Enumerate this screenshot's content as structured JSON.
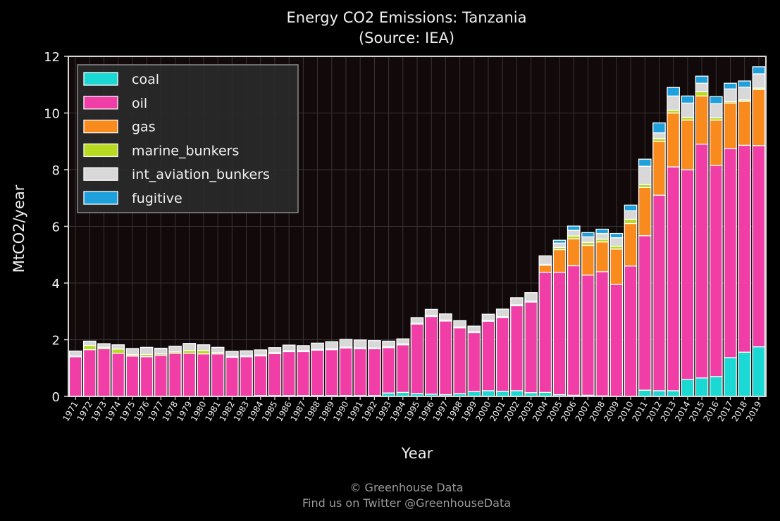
{
  "chart_data": {
    "type": "bar",
    "stacked": true,
    "title": "Energy CO2 Emissions: Tanzania",
    "subtitle": "(Source: IEA)",
    "xlabel": "Year",
    "ylabel": "MtCO2/year",
    "ylim": [
      0,
      12
    ],
    "yticks": [
      0,
      2,
      4,
      6,
      8,
      10,
      12
    ],
    "grid": true,
    "legend_position": "top-left",
    "categories": [
      "1971",
      "1972",
      "1973",
      "1974",
      "1975",
      "1976",
      "1977",
      "1978",
      "1979",
      "1980",
      "1981",
      "1982",
      "1983",
      "1984",
      "1985",
      "1986",
      "1987",
      "1988",
      "1989",
      "1990",
      "1991",
      "1992",
      "1993",
      "1994",
      "1995",
      "1996",
      "1997",
      "1998",
      "1999",
      "2000",
      "2001",
      "2002",
      "2003",
      "2004",
      "2005",
      "2006",
      "2007",
      "2008",
      "2009",
      "2010",
      "2011",
      "2012",
      "2013",
      "2014",
      "2015",
      "2016",
      "2017",
      "2018",
      "2019"
    ],
    "series": [
      {
        "name": "coal",
        "color": "#1ad9d4",
        "values": [
          0,
          0,
          0,
          0,
          0,
          0,
          0,
          0,
          0,
          0,
          0,
          0,
          0,
          0.03,
          0.03,
          0.03,
          0.03,
          0.03,
          0.03,
          0.03,
          0.03,
          0.03,
          0.12,
          0.14,
          0.1,
          0.08,
          0.06,
          0.1,
          0.17,
          0.2,
          0.18,
          0.2,
          0.13,
          0.14,
          0.06,
          0.04,
          0.04,
          0.02,
          0,
          0,
          0.22,
          0.2,
          0.2,
          0.6,
          0.65,
          0.7,
          1.37,
          1.56,
          1.75
        ]
      },
      {
        "name": "oil",
        "color": "#f03ea6",
        "values": [
          1.4,
          1.65,
          1.68,
          1.52,
          1.42,
          1.4,
          1.45,
          1.52,
          1.52,
          1.5,
          1.5,
          1.38,
          1.4,
          1.4,
          1.48,
          1.55,
          1.55,
          1.6,
          1.62,
          1.68,
          1.65,
          1.65,
          1.6,
          1.68,
          2.45,
          2.74,
          2.6,
          2.32,
          2.08,
          2.45,
          2.6,
          3.0,
          3.2,
          4.24,
          4.32,
          4.57,
          4.24,
          4.38,
          3.95,
          4.6,
          5.45,
          6.9,
          7.9,
          7.4,
          8.25,
          7.45,
          7.38,
          7.3,
          7.1
        ]
      },
      {
        "name": "gas",
        "color": "#f98a1e",
        "values": [
          0,
          0,
          0,
          0,
          0,
          0,
          0,
          0,
          0,
          0,
          0,
          0,
          0,
          0,
          0,
          0,
          0,
          0,
          0,
          0,
          0,
          0,
          0,
          0,
          0,
          0,
          0,
          0,
          0,
          0,
          0,
          0,
          0,
          0.25,
          0.8,
          0.95,
          1.05,
          1.05,
          1.25,
          1.5,
          1.7,
          1.9,
          1.9,
          1.75,
          1.7,
          1.6,
          1.6,
          1.55,
          1.98
        ]
      },
      {
        "name": "marine_bunkers",
        "color": "#b8da20",
        "values": [
          0.02,
          0.15,
          0.05,
          0.15,
          0.05,
          0.08,
          0.05,
          0.05,
          0.1,
          0.12,
          0.05,
          0.03,
          0.03,
          0.03,
          0.03,
          0.03,
          0.03,
          0.03,
          0.03,
          0.03,
          0.03,
          0.03,
          0.03,
          0.03,
          0.03,
          0.03,
          0.03,
          0.03,
          0.03,
          0.03,
          0.03,
          0.03,
          0.03,
          0.03,
          0.08,
          0.1,
          0.1,
          0.1,
          0.1,
          0.15,
          0.1,
          0.1,
          0.1,
          0.1,
          0.15,
          0.08,
          0.05,
          0.05,
          0.05
        ]
      },
      {
        "name": "int_aviation_bunkers",
        "color": "#d8d8d8",
        "values": [
          0.18,
          0.15,
          0.13,
          0.15,
          0.22,
          0.25,
          0.2,
          0.2,
          0.25,
          0.2,
          0.18,
          0.18,
          0.18,
          0.18,
          0.18,
          0.2,
          0.18,
          0.22,
          0.25,
          0.27,
          0.28,
          0.26,
          0.2,
          0.18,
          0.2,
          0.22,
          0.22,
          0.22,
          0.2,
          0.22,
          0.27,
          0.25,
          0.3,
          0.3,
          0.15,
          0.2,
          0.2,
          0.2,
          0.3,
          0.3,
          0.65,
          0.2,
          0.5,
          0.5,
          0.3,
          0.5,
          0.45,
          0.45,
          0.5
        ]
      },
      {
        "name": "fugitive",
        "color": "#1da0dc",
        "values": [
          0,
          0,
          0,
          0,
          0,
          0,
          0,
          0,
          0,
          0,
          0,
          0,
          0,
          0,
          0,
          0,
          0,
          0,
          0,
          0,
          0,
          0,
          0,
          0,
          0,
          0,
          0,
          0,
          0,
          0,
          0,
          0,
          0,
          0,
          0.1,
          0.15,
          0.15,
          0.15,
          0.15,
          0.2,
          0.25,
          0.35,
          0.3,
          0.25,
          0.25,
          0.25,
          0.2,
          0.22,
          0.25
        ]
      }
    ]
  },
  "footer": {
    "copyright": "© Greenhouse Data",
    "twitter": "Find us on Twitter @GreenhouseData"
  }
}
